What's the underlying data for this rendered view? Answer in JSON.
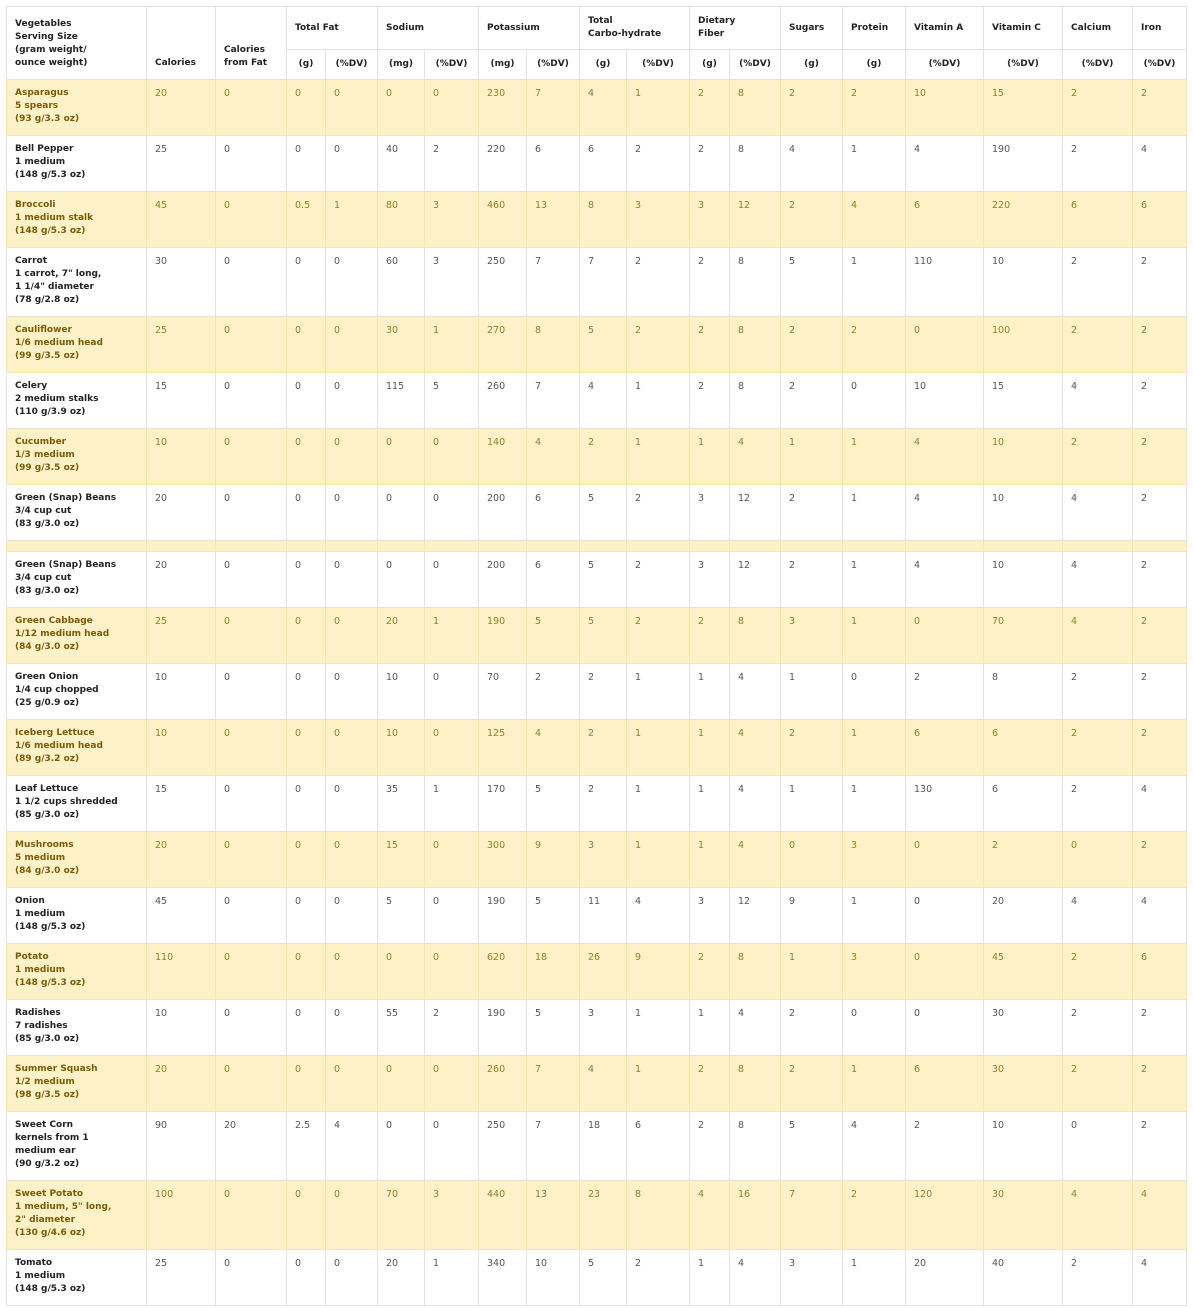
{
  "table": {
    "header_top": [
      {
        "label": [
          "Vegetables",
          "Serving Size",
          "(gram weight/",
          "ounce weight)"
        ],
        "rowspan": 2
      },
      {
        "label": [
          "Calories"
        ],
        "rowspan": 2
      },
      {
        "label": [
          "Calories",
          "from Fat"
        ],
        "rowspan": 2
      },
      {
        "label": [
          "Total Fat"
        ],
        "colspan": 2
      },
      {
        "label": [
          "Sodium"
        ],
        "colspan": 2
      },
      {
        "label": [
          "Potassium"
        ],
        "colspan": 2
      },
      {
        "label": [
          "Total",
          "Carbo-hydrate"
        ],
        "colspan": 2
      },
      {
        "label": [
          "Dietary",
          "Fiber"
        ],
        "colspan": 2
      },
      {
        "label": [
          "Sugars"
        ]
      },
      {
        "label": [
          "Protein"
        ]
      },
      {
        "label": [
          "Vitamin A"
        ]
      },
      {
        "label": [
          "Vitamin C"
        ]
      },
      {
        "label": [
          "Calcium"
        ]
      },
      {
        "label": [
          "Iron"
        ]
      }
    ],
    "header_units": [
      "(g)",
      "(%DV)",
      "(mg)",
      "(%DV)",
      "(mg)",
      "(%DV)",
      "(g)",
      "(%DV)",
      "(g)",
      "(%DV)",
      "(g)",
      "(g)",
      "(%DV)",
      "(%DV)",
      "(%DV)",
      "(%DV)"
    ],
    "rows": [
      {
        "name": [
          "Asparagus",
          "5 spears",
          "(93 g/3.3 oz)"
        ],
        "values": [
          "20",
          "0",
          "0",
          "0",
          "0",
          "0",
          "230",
          "7",
          "4",
          "1",
          "2",
          "8",
          "2",
          "2",
          "10",
          "15",
          "2",
          "2"
        ]
      },
      {
        "name": [
          "Bell Pepper",
          "1 medium",
          "(148 g/5.3 oz)"
        ],
        "values": [
          "25",
          "0",
          "0",
          "0",
          "40",
          "2",
          "220",
          "6",
          "6",
          "2",
          "2",
          "8",
          "4",
          "1",
          "4",
          "190",
          "2",
          "4"
        ]
      },
      {
        "name": [
          "Broccoli",
          "1 medium stalk",
          "(148 g/5.3 oz)"
        ],
        "values": [
          "45",
          "0",
          "0.5",
          "1",
          "80",
          "3",
          "460",
          "13",
          "8",
          "3",
          "3",
          "12",
          "2",
          "4",
          "6",
          "220",
          "6",
          "6"
        ]
      },
      {
        "name": [
          "Carrot",
          "1 carrot, 7\" long,",
          "1 1/4\" diameter",
          "(78 g/2.8 oz)"
        ],
        "values": [
          "30",
          "0",
          "0",
          "0",
          "60",
          "3",
          "250",
          "7",
          "7",
          "2",
          "2",
          "8",
          "5",
          "1",
          "110",
          "10",
          "2",
          "2"
        ]
      },
      {
        "name": [
          "Cauliflower",
          "1/6 medium head",
          "(99 g/3.5 oz)"
        ],
        "values": [
          "25",
          "0",
          "0",
          "0",
          "30",
          "1",
          "270",
          "8",
          "5",
          "2",
          "2",
          "8",
          "2",
          "2",
          "0",
          "100",
          "2",
          "2"
        ]
      },
      {
        "name": [
          "Celery",
          "2 medium stalks",
          "(110 g/3.9 oz)"
        ],
        "values": [
          "15",
          "0",
          "0",
          "0",
          "115",
          "5",
          "260",
          "7",
          "4",
          "1",
          "2",
          "8",
          "2",
          "0",
          "10",
          "15",
          "4",
          "2"
        ]
      },
      {
        "name": [
          "Cucumber",
          "1/3 medium",
          "(99 g/3.5 oz)"
        ],
        "values": [
          "10",
          "0",
          "0",
          "0",
          "0",
          "0",
          "140",
          "4",
          "2",
          "1",
          "1",
          "4",
          "1",
          "1",
          "4",
          "10",
          "2",
          "2"
        ]
      },
      {
        "name": [
          "Green (Snap) Beans",
          "3/4 cup cut",
          "(83 g/3.0 oz)"
        ],
        "values": [
          "20",
          "0",
          "0",
          "0",
          "0",
          "0",
          "200",
          "6",
          "5",
          "2",
          "3",
          "12",
          "2",
          "1",
          "4",
          "10",
          "4",
          "2"
        ]
      },
      {
        "partial": true,
        "name": [],
        "values": []
      },
      {
        "name": [
          "Green (Snap) Beans",
          "3/4 cup cut",
          "(83 g/3.0 oz)"
        ],
        "values": [
          "20",
          "0",
          "0",
          "0",
          "0",
          "0",
          "200",
          "6",
          "5",
          "2",
          "3",
          "12",
          "2",
          "1",
          "4",
          "10",
          "4",
          "2"
        ]
      },
      {
        "name": [
          "Green Cabbage",
          "1/12 medium head",
          "(84 g/3.0 oz)"
        ],
        "values": [
          "25",
          "0",
          "0",
          "0",
          "20",
          "1",
          "190",
          "5",
          "5",
          "2",
          "2",
          "8",
          "3",
          "1",
          "0",
          "70",
          "4",
          "2"
        ]
      },
      {
        "name": [
          "Green Onion",
          "1/4 cup chopped",
          "(25 g/0.9 oz)"
        ],
        "values": [
          "10",
          "0",
          "0",
          "0",
          "10",
          "0",
          "70",
          "2",
          "2",
          "1",
          "1",
          "4",
          "1",
          "0",
          "2",
          "8",
          "2",
          "2"
        ]
      },
      {
        "name": [
          "Iceberg Lettuce",
          "1/6 medium head",
          "(89 g/3.2 oz)"
        ],
        "values": [
          "10",
          "0",
          "0",
          "0",
          "10",
          "0",
          "125",
          "4",
          "2",
          "1",
          "1",
          "4",
          "2",
          "1",
          "6",
          "6",
          "2",
          "2"
        ]
      },
      {
        "name": [
          "Leaf Lettuce",
          "1 1/2 cups shredded",
          "(85 g/3.0 oz)"
        ],
        "values": [
          "15",
          "0",
          "0",
          "0",
          "35",
          "1",
          "170",
          "5",
          "2",
          "1",
          "1",
          "4",
          "1",
          "1",
          "130",
          "6",
          "2",
          "4"
        ]
      },
      {
        "name": [
          "Mushrooms",
          "5 medium",
          "(84 g/3.0 oz)"
        ],
        "values": [
          "20",
          "0",
          "0",
          "0",
          "15",
          "0",
          "300",
          "9",
          "3",
          "1",
          "1",
          "4",
          "0",
          "3",
          "0",
          "2",
          "0",
          "2"
        ]
      },
      {
        "name": [
          "Onion",
          "1 medium",
          "(148 g/5.3 oz)"
        ],
        "values": [
          "45",
          "0",
          "0",
          "0",
          "5",
          "0",
          "190",
          "5",
          "11",
          "4",
          "3",
          "12",
          "9",
          "1",
          "0",
          "20",
          "4",
          "4"
        ]
      },
      {
        "name": [
          "Potato",
          "1 medium",
          "(148 g/5.3 oz)"
        ],
        "values": [
          "110",
          "0",
          "0",
          "0",
          "0",
          "0",
          "620",
          "18",
          "26",
          "9",
          "2",
          "8",
          "1",
          "3",
          "0",
          "45",
          "2",
          "6"
        ]
      },
      {
        "name": [
          "Radishes",
          "7 radishes",
          "(85 g/3.0 oz)"
        ],
        "values": [
          "10",
          "0",
          "0",
          "0",
          "55",
          "2",
          "190",
          "5",
          "3",
          "1",
          "1",
          "4",
          "2",
          "0",
          "0",
          "30",
          "2",
          "2"
        ]
      },
      {
        "name": [
          "Summer Squash",
          "1/2 medium",
          "(98 g/3.5 oz)"
        ],
        "values": [
          "20",
          "0",
          "0",
          "0",
          "0",
          "0",
          "260",
          "7",
          "4",
          "1",
          "2",
          "8",
          "2",
          "1",
          "6",
          "30",
          "2",
          "2"
        ]
      },
      {
        "name": [
          "Sweet Corn",
          "kernels from 1",
          "medium ear",
          "(90 g/3.2 oz)"
        ],
        "values": [
          "90",
          "20",
          "2.5",
          "4",
          "0",
          "0",
          "250",
          "7",
          "18",
          "6",
          "2",
          "8",
          "5",
          "4",
          "2",
          "10",
          "0",
          "2"
        ]
      },
      {
        "name": [
          "Sweet Potato",
          "1 medium, 5\" long,",
          "2\" diameter",
          "(130 g/4.6 oz)"
        ],
        "values": [
          "100",
          "0",
          "0",
          "0",
          "70",
          "3",
          "440",
          "13",
          "23",
          "8",
          "4",
          "16",
          "7",
          "2",
          "120",
          "30",
          "4",
          "4"
        ]
      },
      {
        "name": [
          "Tomato",
          "1 medium",
          "(148 g/5.3 oz)"
        ],
        "values": [
          "25",
          "0",
          "0",
          "0",
          "20",
          "1",
          "340",
          "10",
          "5",
          "2",
          "1",
          "4",
          "3",
          "1",
          "20",
          "40",
          "2",
          "4"
        ]
      }
    ]
  },
  "colors": {
    "row_highlight": "#fdf2c7",
    "highlight_text": "#7a5a08",
    "border": "#e2e2e2"
  }
}
